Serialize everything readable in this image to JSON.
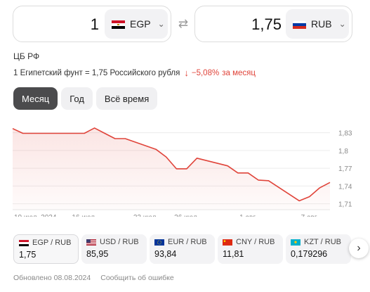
{
  "converter": {
    "from_amount": "1",
    "from_currency": "EGP",
    "to_amount": "1,75",
    "to_currency": "RUB",
    "swap_icon": "swap-arrows-icon"
  },
  "source": "ЦБ РФ",
  "rate_text": "1 Египетский фунт = 1,75 Российского рубля",
  "change": {
    "value": "−5,08%",
    "period": "за месяц",
    "color": "#e0443a"
  },
  "periods": [
    {
      "label": "Месяц",
      "active": true
    },
    {
      "label": "Год",
      "active": false
    },
    {
      "label": "Всё время",
      "active": false
    }
  ],
  "chart_data": {
    "type": "area",
    "title": "",
    "xlabel": "",
    "ylabel": "",
    "x_tick_labels": [
      "10 июл. 2024",
      "16 июл.",
      "22 июл.",
      "26 июл.",
      "1 авг.",
      "7 авг."
    ],
    "y_tick_labels": [
      "1,83",
      "1,8",
      "1,77",
      "1,74",
      "1,71"
    ],
    "ylim": [
      1.7,
      1.845
    ],
    "grid": true,
    "series": [
      {
        "x": [
          "2024-07-09",
          "2024-07-10",
          "2024-07-11",
          "2024-07-12",
          "2024-07-13",
          "2024-07-16",
          "2024-07-17",
          "2024-07-18",
          "2024-07-19",
          "2024-07-20",
          "2024-07-23",
          "2024-07-24",
          "2024-07-25",
          "2024-07-26",
          "2024-07-27",
          "2024-07-30",
          "2024-07-31",
          "2024-08-01",
          "2024-08-02",
          "2024-08-03",
          "2024-08-06",
          "2024-08-07",
          "2024-08-08",
          "2024-08-09"
        ],
        "values": [
          1.837,
          1.829,
          1.829,
          1.829,
          1.829,
          1.829,
          1.838,
          1.829,
          1.82,
          1.82,
          1.802,
          1.789,
          1.769,
          1.769,
          1.787,
          1.774,
          1.762,
          1.762,
          1.75,
          1.749,
          1.715,
          1.722,
          1.737,
          1.746
        ],
        "color": "#e0443a"
      }
    ]
  },
  "cards": [
    {
      "pair": "EGP / RUB",
      "value": "1,75",
      "flag": "egypt",
      "active": true
    },
    {
      "pair": "USD / RUB",
      "value": "85,95",
      "flag": "usa",
      "active": false
    },
    {
      "pair": "EUR / RUB",
      "value": "93,84",
      "flag": "eu",
      "active": false
    },
    {
      "pair": "CNY / RUB",
      "value": "11,81",
      "flag": "china",
      "active": false
    },
    {
      "pair": "KZT / RUB",
      "value": "0,179296",
      "flag": "kazakhstan",
      "active": false
    }
  ],
  "next_icon": "chevron-right-icon",
  "footer": {
    "updated": "Обновлено 08.08.2024",
    "report": "Сообщить об ошибке"
  }
}
